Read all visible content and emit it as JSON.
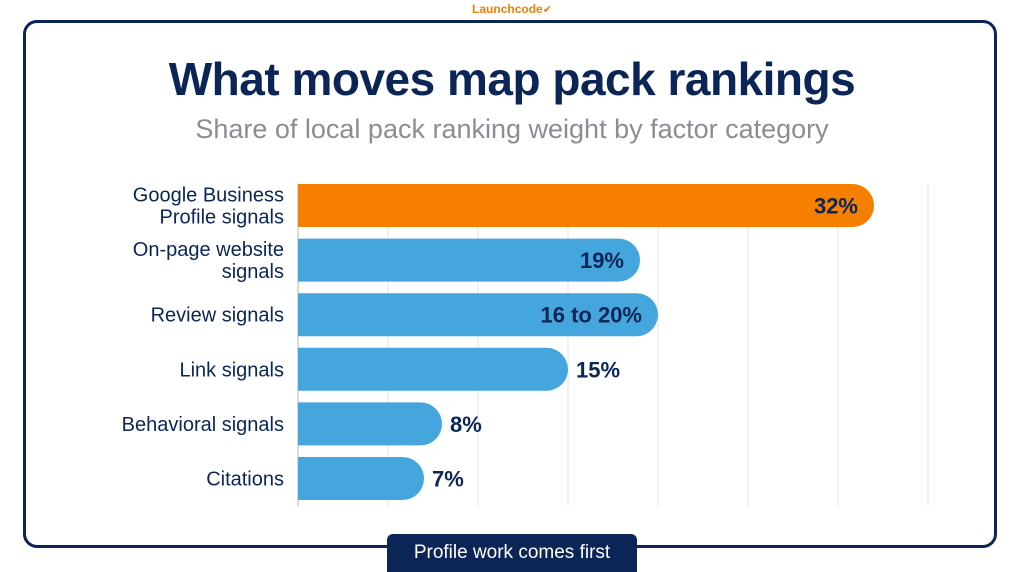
{
  "brand": {
    "name": "Launchcode",
    "mark": "✔"
  },
  "header": {
    "title": "What moves map pack rankings",
    "subtitle": "Share of local pack ranking weight by factor category"
  },
  "footer": {
    "tag": "Profile work comes first"
  },
  "colors": {
    "highlight": "#f77f00",
    "bar": "#45a6de",
    "navy": "#0b2557",
    "grid": "#e3e3e3"
  },
  "chart_data": {
    "type": "bar",
    "orientation": "horizontal",
    "categories": [
      [
        "Google Business",
        "Profile signals"
      ],
      [
        "On-page website",
        "signals"
      ],
      [
        "Review signals"
      ],
      [
        "Link signals"
      ],
      [
        "Behavioral signals"
      ],
      [
        "Citations"
      ]
    ],
    "values": [
      32,
      19,
      20,
      15,
      8,
      7
    ],
    "labels": [
      "32%",
      "19%",
      "16 to 20%",
      "15%",
      "8%",
      "7%"
    ],
    "highlight_index": 0,
    "xlim": [
      0,
      36
    ],
    "grid": true
  }
}
